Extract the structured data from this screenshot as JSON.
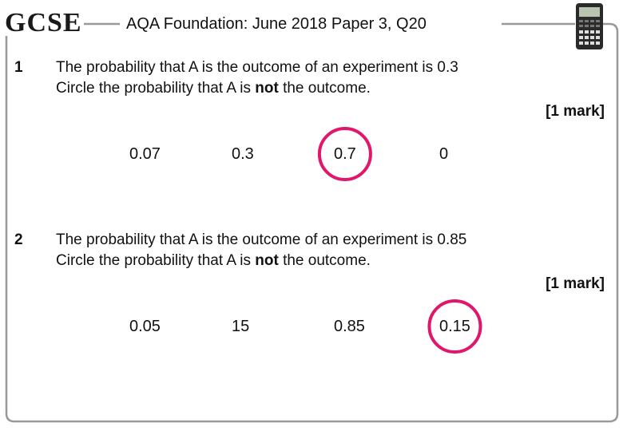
{
  "header": {
    "logo": "GCSE",
    "title": "AQA Foundation: June 2018 Paper 3, Q20"
  },
  "questions": [
    {
      "number": "1",
      "line1": "The probability that A is the outcome of an experiment is 0.3",
      "line2": [
        "Circle the probability that A is ",
        "not",
        " the outcome."
      ],
      "marks": "[1 mark]",
      "options": [
        "0.07",
        "0.3",
        "0.7",
        "0"
      ],
      "circled": 2
    },
    {
      "number": "2",
      "line1": "The probability that A is the outcome of an experiment is 0.85",
      "line2": [
        "Circle the probability that A is ",
        "not",
        " the outcome."
      ],
      "marks": "[1 mark]",
      "options": [
        "0.05",
        "15",
        "0.85",
        "0.15"
      ],
      "circled": 3
    }
  ]
}
